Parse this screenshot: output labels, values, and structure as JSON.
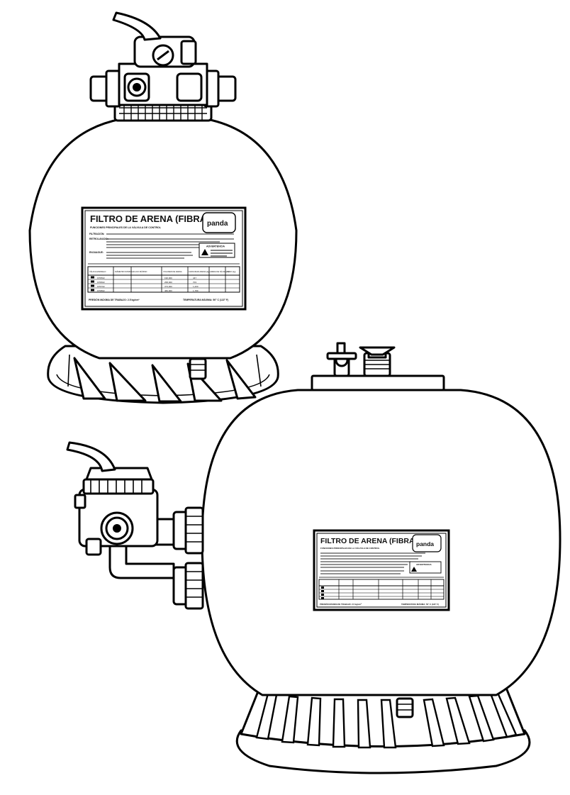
{
  "colors": {
    "ink": "#000000",
    "paper": "#ffffff"
  },
  "top_filter": {
    "label": {
      "title": "FILTRO DE ARENA (FIBRA)",
      "subtitle": "FUNCIONES PRINCIPALES DE LA VÁLVULA DE CONTROL",
      "logo": "panda",
      "warning_title": "ADVERTENCIA",
      "footer_left": "PRESIÓN MÁXIMA DE TRABAJO: 2.5 kg/cm²",
      "footer_right": "TEMPERATURA MÁXIMA: 50° C (122° F)",
      "functions": [
        {
          "name": "FILTRACIÓN:"
        },
        {
          "name": "RETROLAVADO:"
        },
        {
          "name": "ENJUAGUE:"
        }
      ],
      "table_header": [
        "VÁLVULA/MODELO",
        "DIÁMETRO NOMINAL",
        "FLUJO MÁXIMO",
        "VOLUMEN DE ARENA",
        "CAPACIDAD ARENA (kg)",
        "ARENA DE SÍLICE (m³)",
        "PESO (kg)"
      ],
      "table_rows": [
        {
          "model": "FPF502",
          "flow": "190,000",
          "sand": "447"
        },
        {
          "model": "FPF602",
          "flow": "258,000",
          "sand": "703"
        },
        {
          "model": "FPF702",
          "flow": "373,000",
          "sand": "1,200"
        },
        {
          "model": "FPF802",
          "flow": "482,000",
          "sand": "1,789"
        }
      ]
    }
  },
  "bottom_filter": {
    "label": {
      "title": "FILTRO DE ARENA (FIBRA)",
      "subtitle": "FUNCIONES PRINCIPALES DE LA VÁLVULA DE CONTROL",
      "logo": "panda",
      "warning_title": "ADVERTENCIA",
      "footer_left": "PRESIÓN MÁXIMA DE TRABAJO: 2.5 kg/cm²",
      "footer_right": "TEMPERATURA MÁXIMA: 50° C (122° F)"
    }
  }
}
